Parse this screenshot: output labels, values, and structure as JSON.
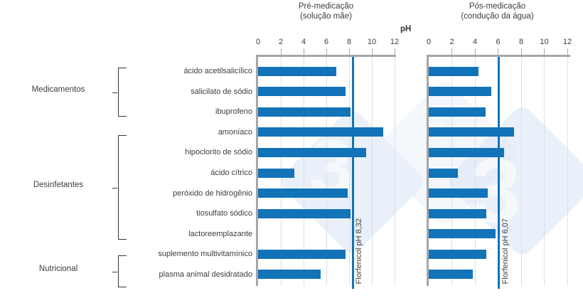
{
  "figure": {
    "axis_label": "pH"
  },
  "watermark": {
    "glyph": "3"
  },
  "groups": [
    {
      "label": "Medicamentos",
      "rows": [
        0,
        2
      ]
    },
    {
      "label": "Desinfetantes",
      "rows": [
        3,
        8
      ]
    },
    {
      "label": "Nutricional",
      "rows": [
        9,
        10
      ]
    }
  ],
  "chart_data": [
    {
      "type": "bar",
      "orientation": "horizontal",
      "title": "Pré-medicação",
      "subtitle": "(solução mãe)",
      "xlabel": "pH",
      "xlim": [
        0,
        12
      ],
      "xticks": [
        0,
        2,
        4,
        6,
        8,
        10,
        12
      ],
      "grid": true,
      "bar_color": "#1273b9",
      "categories": [
        "ácido acetilsalicílico",
        "salicilato de sódio",
        "ibuprofeno",
        "amoníaco",
        "hipoclorito de sódio",
        "ácido cítrico",
        "peróxido de hidrogênio",
        "tiosulfato sódico",
        "lactoreemplazante",
        "suplemento multivitamínico",
        "plasma animal desidratado"
      ],
      "values": [
        6.9,
        7.7,
        8.1,
        11.0,
        9.5,
        3.2,
        7.9,
        8.1,
        null,
        7.7,
        5.5
      ],
      "reference_line": {
        "value": 8.32,
        "label": "Florfenicol pH 8,32",
        "color": "#1273b9"
      }
    },
    {
      "type": "bar",
      "orientation": "horizontal",
      "title": "Pós-medicação",
      "subtitle": "(condução da água)",
      "xlabel": "pH",
      "xlim": [
        0,
        12
      ],
      "xticks": [
        0,
        2,
        4,
        6,
        8,
        10,
        12
      ],
      "grid": true,
      "bar_color": "#1273b9",
      "categories": [
        "ácido acetilsalicílico",
        "salicilato de sódio",
        "ibuprofeno",
        "amoníaco",
        "hipoclorito de sódio",
        "ácido cítrico",
        "peróxido de hidrogênio",
        "tiosulfato sódico",
        "lactoreemplazante",
        "suplemento multivitamínico",
        "plasma animal desidratado"
      ],
      "values": [
        4.3,
        5.4,
        4.9,
        7.4,
        6.5,
        2.5,
        5.1,
        5.0,
        5.8,
        5.0,
        3.8
      ],
      "reference_line": {
        "value": 6.07,
        "label": "Florfenicol pH 6,07",
        "color": "#1273b9"
      }
    }
  ]
}
